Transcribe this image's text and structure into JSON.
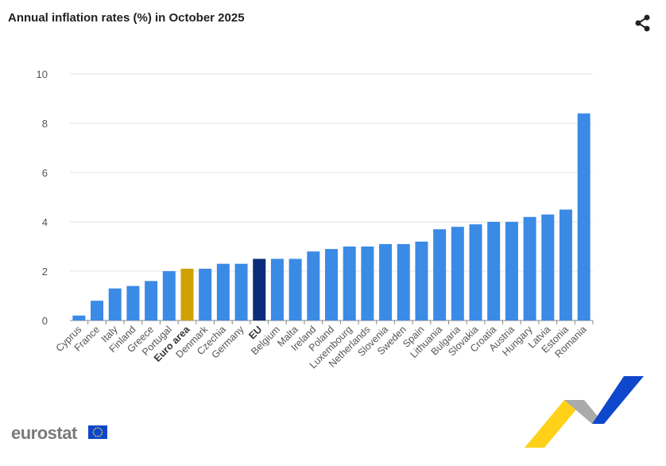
{
  "title": "Annual inflation rates (%) in October 2025",
  "logo_text": "eurostat",
  "icons": {
    "share": "share-icon",
    "flag": "eu-flag-icon"
  },
  "colors": {
    "default": "#3b8ae6",
    "euro_area": "#cfa100",
    "eu": "#0b2c7a"
  },
  "chart_data": {
    "type": "bar",
    "title": "Annual inflation rates (%) in October 2025",
    "ylim": [
      0,
      10
    ],
    "yticks": [
      0,
      2,
      4,
      6,
      8,
      10
    ],
    "grid": true,
    "categories": [
      "Cyprus",
      "France",
      "Italy",
      "Finland",
      "Greece",
      "Portugal",
      "Euro area",
      "Denmark",
      "Czechia",
      "Germany",
      "EU",
      "Belgium",
      "Malta",
      "Ireland",
      "Poland",
      "Luxembourg",
      "Netherlands",
      "Slovenia",
      "Sweden",
      "Spain",
      "Lithuania",
      "Bulgaria",
      "Slovakia",
      "Croatia",
      "Austria",
      "Hungary",
      "Latvia",
      "Estonia",
      "Romania"
    ],
    "values": [
      0.2,
      0.8,
      1.3,
      1.4,
      1.6,
      2.0,
      2.1,
      2.1,
      2.3,
      2.3,
      2.5,
      2.5,
      2.5,
      2.8,
      2.9,
      3.0,
      3.0,
      3.1,
      3.1,
      3.2,
      3.7,
      3.8,
      3.9,
      4.0,
      4.0,
      4.2,
      4.3,
      4.5,
      8.4
    ],
    "highlight": {
      "Euro area": "euro_area",
      "EU": "eu"
    }
  }
}
